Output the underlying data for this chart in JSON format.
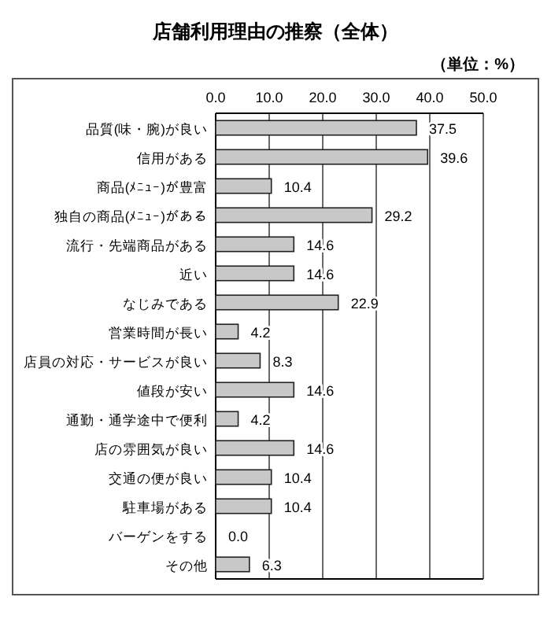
{
  "chart_data": {
    "type": "bar",
    "orientation": "horizontal",
    "title": "店舗利用理由の推察（全体）",
    "annotations": [
      "（単位：%）"
    ],
    "categories": [
      "品質(味・腕)が良い",
      "信用がある",
      "商品(ﾒﾆｭｰ)が豊富",
      "独自の商品(ﾒﾆｭｰ)がある",
      "流行・先端商品がある",
      "近い",
      "なじみである",
      "営業時間が長い",
      "店員の対応・サービスが良い",
      "値段が安い",
      "通勤・通学途中で便利",
      "店の雰囲気が良い",
      "交通の便が良い",
      "駐車場がある",
      "バーゲンをする",
      "その他"
    ],
    "values": [
      37.5,
      39.6,
      10.4,
      29.2,
      14.6,
      14.6,
      22.9,
      4.2,
      8.3,
      14.6,
      4.2,
      14.6,
      10.4,
      10.4,
      0.0,
      6.3
    ],
    "value_labels": [
      "37.5",
      "39.6",
      "10.4",
      "29.2",
      "14.6",
      "14.6",
      "22.9",
      "4.2",
      "8.3",
      "14.6",
      "4.2",
      "14.6",
      "10.4",
      "10.4",
      "0.0",
      "6.3"
    ],
    "color": "#c8c8c8",
    "xlim": [
      0,
      50
    ],
    "xticks": [
      {
        "value": 0,
        "label": "0.0"
      },
      {
        "value": 10,
        "label": "10.0"
      },
      {
        "value": 20,
        "label": "20.0"
      },
      {
        "value": 30,
        "label": "30.0"
      },
      {
        "value": 40,
        "label": "40.0"
      },
      {
        "value": 50,
        "label": "50.0"
      }
    ],
    "grid": "x"
  }
}
